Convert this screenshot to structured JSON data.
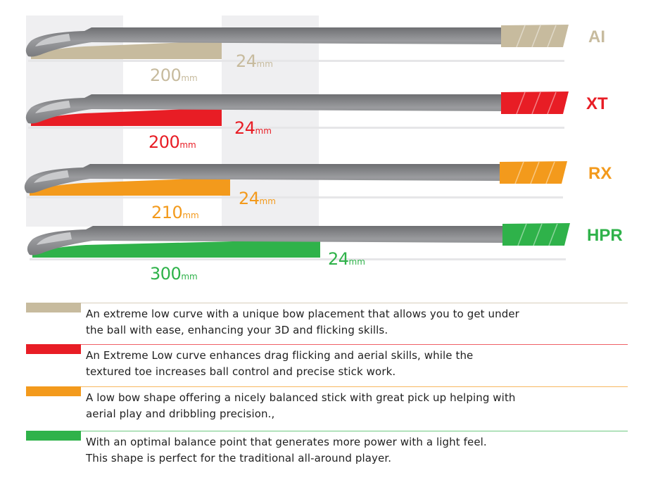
{
  "sticks": [
    {
      "name": "AI",
      "color": "#c7bb9e",
      "length_value": "200",
      "length_unit": "mm",
      "height_value": "24",
      "height_unit": "mm",
      "description": [
        "An extreme low curve with a unique bow placement that allows you to get under",
        "the ball with ease, enhancing your 3D and flicking skills."
      ]
    },
    {
      "name": "XT",
      "color": "#e81d25",
      "length_value": "200",
      "length_unit": "mm",
      "height_value": "24",
      "height_unit": "mm",
      "description": [
        "An Extreme Low curve enhances drag flicking and aerial skills, while the",
        "textured toe increases ball control and precise stick work."
      ]
    },
    {
      "name": "RX",
      "color": "#f39a1c",
      "length_value": "210",
      "length_unit": "mm",
      "height_value": "24",
      "height_unit": "mm",
      "description": [
        "A low bow shape offering a nicely balanced stick with great pick up helping with",
        "aerial play and dribbling precision.,"
      ]
    },
    {
      "name": "HPR",
      "color": "#2fb24a",
      "length_value": "300",
      "length_unit": "mm",
      "height_value": "24",
      "height_unit": "mm",
      "description": [
        "With an optimal balance point that generates more power with a light feel.",
        "This shape is perfect for the traditional all-around player."
      ]
    }
  ]
}
